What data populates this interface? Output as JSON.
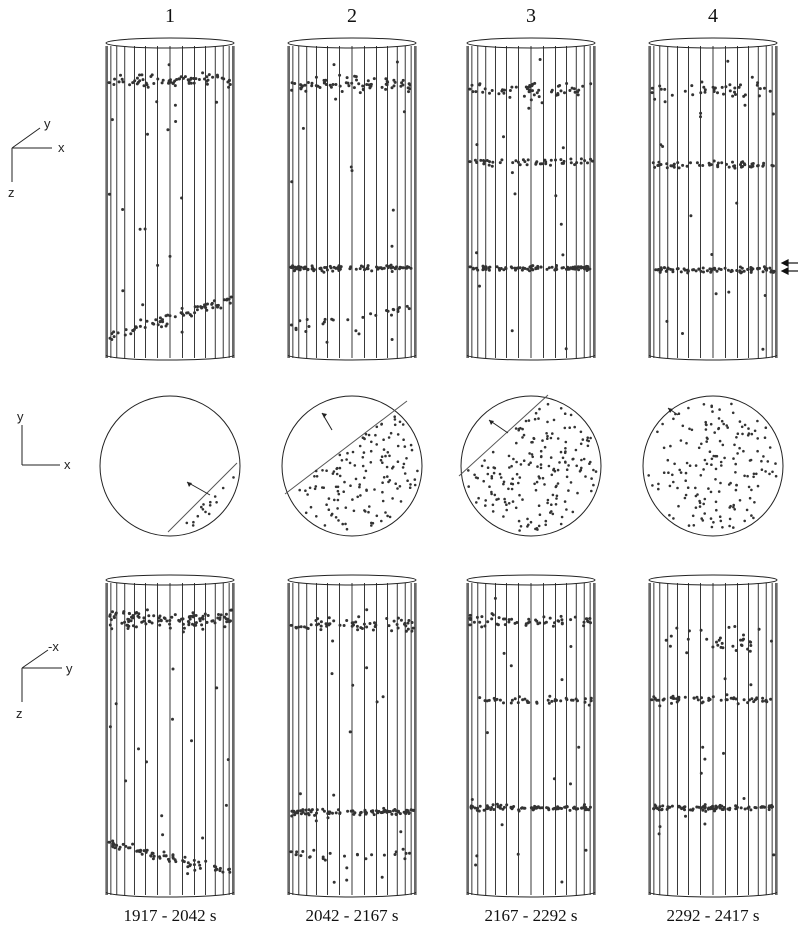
{
  "column_labels": [
    "1",
    "2",
    "3",
    "4"
  ],
  "time_windows": [
    "1917 - 2042 s",
    "2042 - 2167 s",
    "2167 - 2292 s",
    "2292 - 2417 s"
  ],
  "axes": {
    "top": {
      "horizontal": "x",
      "depth": "y",
      "vertical": "z"
    },
    "middle": {
      "horizontal": "x",
      "vertical": "y"
    },
    "bottom": {
      "horizontal": "y",
      "depth": "-x",
      "vertical": "z"
    }
  },
  "colors": {
    "ink": "#222222",
    "dot": "#333333",
    "background": "#ffffff"
  }
}
